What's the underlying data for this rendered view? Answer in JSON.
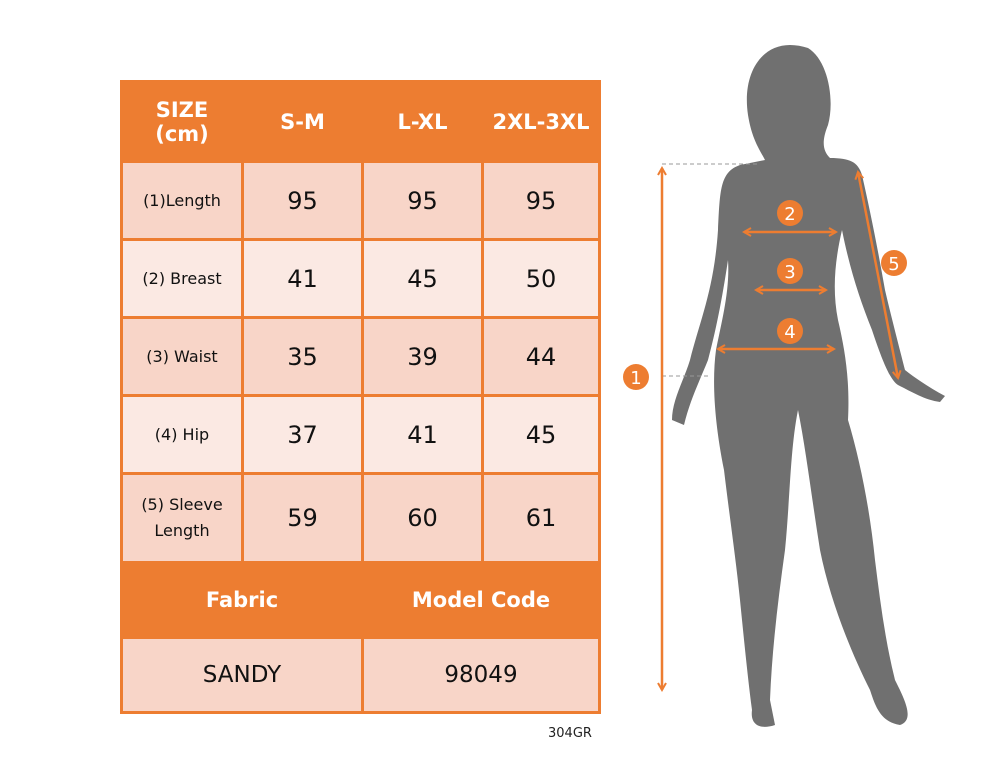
{
  "table": {
    "header": [
      "SIZE\n(cm)",
      "S-M",
      "L-XL",
      "2XL-3XL"
    ],
    "header_line1": "SIZE",
    "header_line2": "(cm)",
    "sizes": [
      "S-M",
      "L-XL",
      "2XL-3XL"
    ],
    "rows": [
      {
        "label": "(1)Length",
        "values": [
          "95",
          "95",
          "95"
        ]
      },
      {
        "label": "(2) Breast",
        "values": [
          "41",
          "45",
          "50"
        ]
      },
      {
        "label": "(3) Waist",
        "values": [
          "35",
          "39",
          "44"
        ]
      },
      {
        "label": "(4) Hip",
        "values": [
          "37",
          "41",
          "45"
        ]
      },
      {
        "label": "(5) Sleeve Length",
        "label_line1": "(5) Sleeve",
        "label_line2": "Length",
        "values": [
          "59",
          "60",
          "61"
        ]
      }
    ]
  },
  "info": {
    "fabric_label": "Fabric",
    "model_code_label": "Model Code",
    "fabric": "SANDY",
    "model_code": "98049"
  },
  "product_code": "304GR",
  "figure": {
    "markers": [
      "1",
      "2",
      "3",
      "4",
      "5"
    ]
  },
  "colors": {
    "accent": "#ED7D31",
    "row_dark": "#F8D5C8",
    "row_light": "#FBE9E3",
    "silhouette": "#707070"
  }
}
